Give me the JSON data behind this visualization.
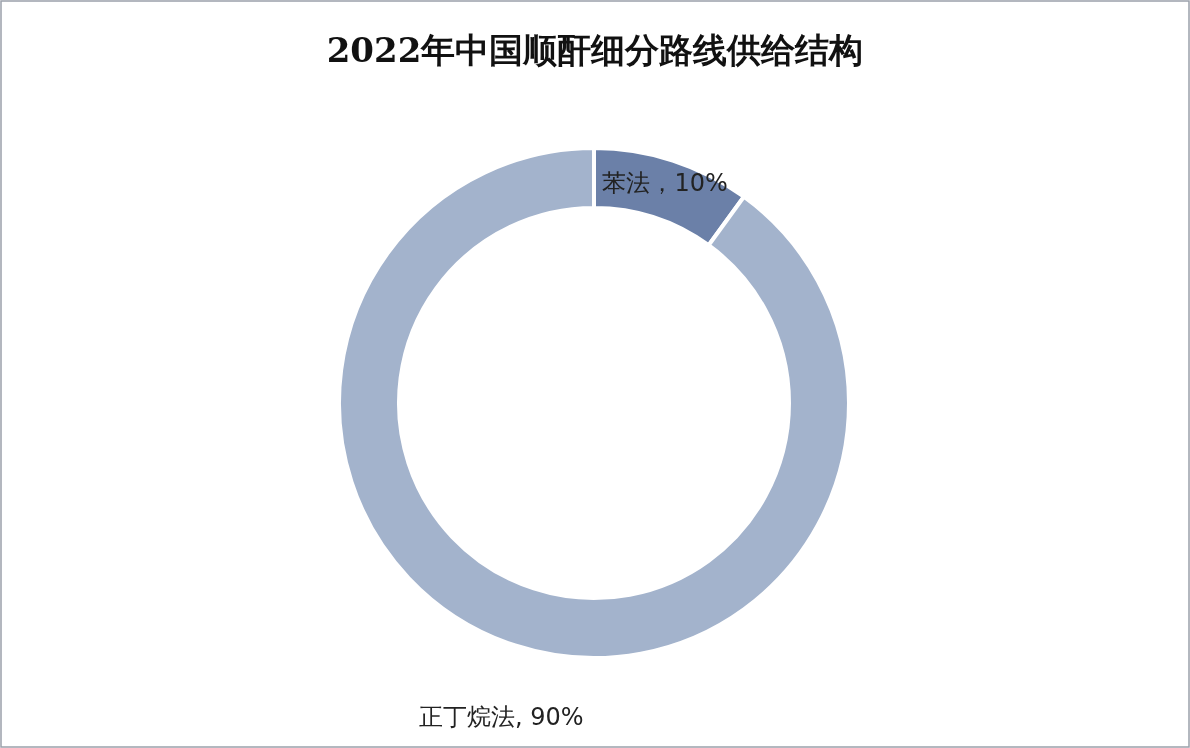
{
  "chart_data": {
    "type": "donut",
    "title": "2022年中国顺酐细分路线供给结构",
    "categories": [
      "苯法",
      "正丁烷法"
    ],
    "values": [
      10,
      90
    ],
    "colors": [
      "#6b80a8",
      "#a3b3cc"
    ],
    "value_labels": [
      "，10%",
      ", 90%"
    ]
  }
}
